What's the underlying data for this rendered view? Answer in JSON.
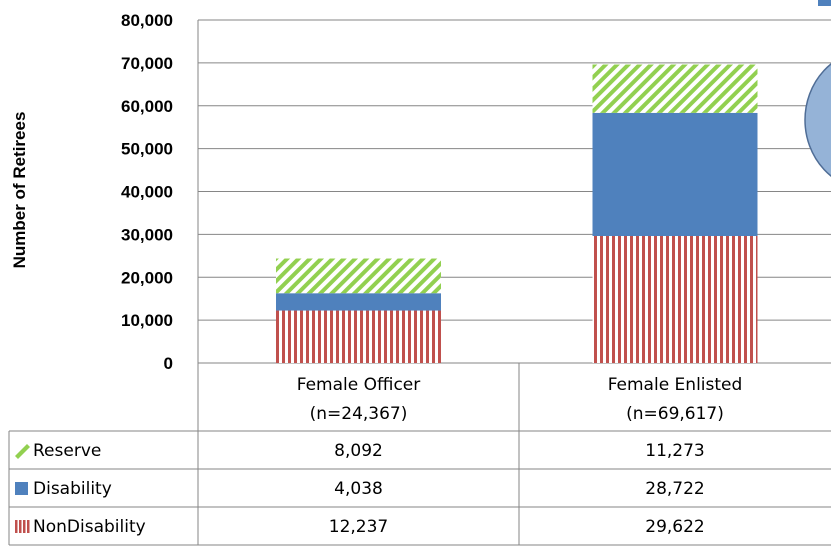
{
  "chart_data": {
    "type": "bar",
    "stacked": true,
    "ylabel": "Number of Retirees",
    "ylim": [
      0,
      80000
    ],
    "yticks": [
      "0",
      "10,000",
      "20,000",
      "30,000",
      "40,000",
      "50,000",
      "60,000",
      "70,000",
      "80,000"
    ],
    "categories": [
      {
        "line1": "Female Officer",
        "line2": "(n=24,367)"
      },
      {
        "line1": "Female Enlisted",
        "line2": "(n=69,617)"
      }
    ],
    "series": [
      {
        "name": "Reserve",
        "values": [
          8092,
          11273
        ],
        "display": [
          "8,092",
          "11,273"
        ],
        "color": "#92D050",
        "pattern": "diagonal-stripes"
      },
      {
        "name": "Disability",
        "values": [
          4038,
          28722
        ],
        "display": [
          "4,038",
          "28,722"
        ],
        "color": "#4F81BD",
        "pattern": "solid"
      },
      {
        "name": "NonDisability",
        "values": [
          12237,
          29622
        ],
        "display": [
          "12,237",
          "29,622"
        ],
        "color": "#C0504D",
        "pattern": "vertical-stripes"
      }
    ],
    "stack_order_bottom_to_top": [
      "NonDisability",
      "Disability",
      "Reserve"
    ],
    "grid": true,
    "data_table": true
  }
}
